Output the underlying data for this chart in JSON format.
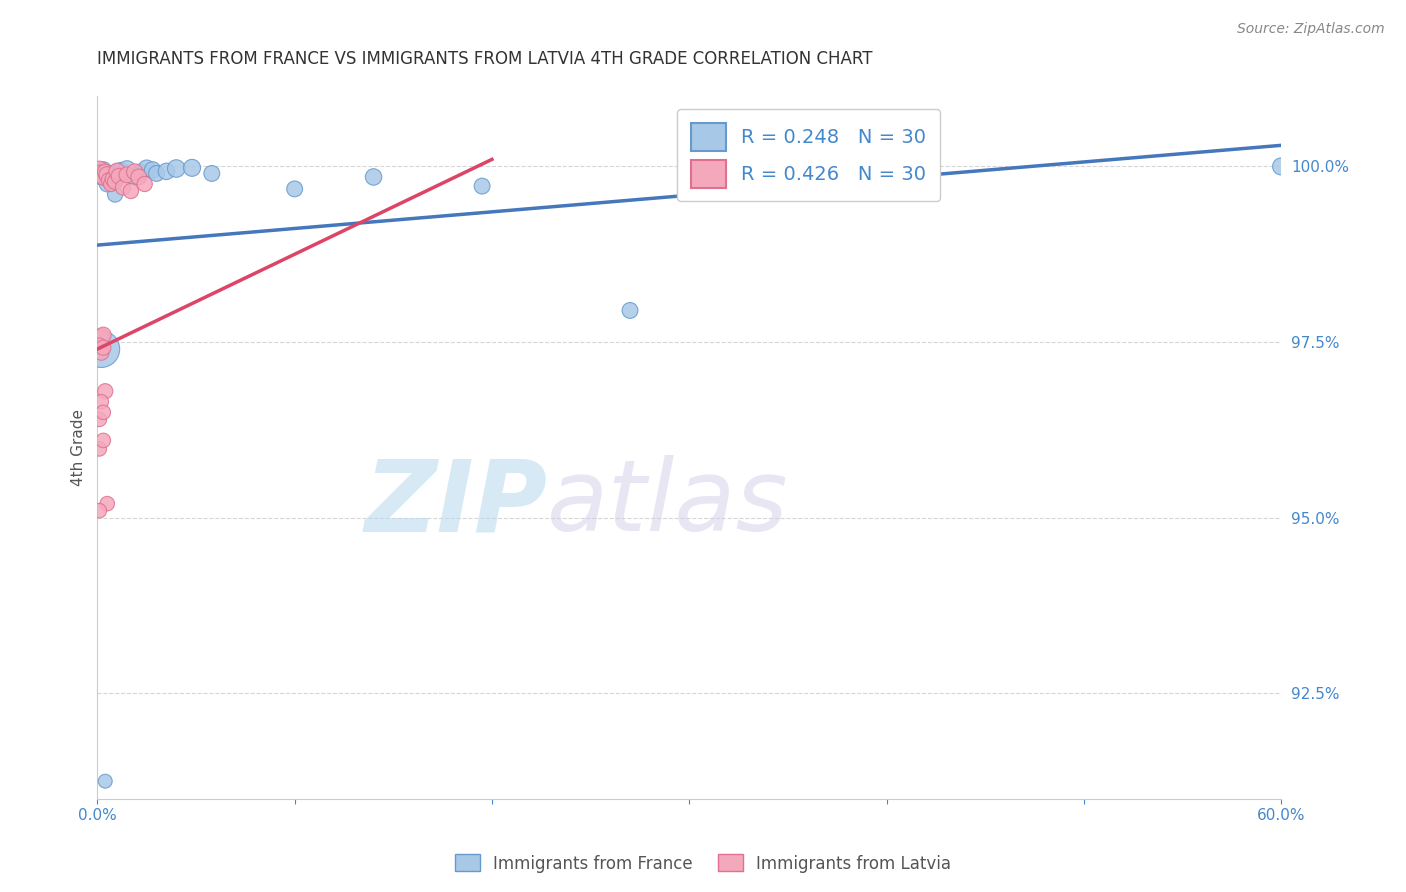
{
  "title": "IMMIGRANTS FROM FRANCE VS IMMIGRANTS FROM LATVIA 4TH GRADE CORRELATION CHART",
  "source": "Source: ZipAtlas.com",
  "xlabel_france": "Immigrants from France",
  "xlabel_latvia": "Immigrants from Latvia",
  "ylabel": "4th Grade",
  "xlim": [
    0.0,
    0.6
  ],
  "ylim": [
    0.91,
    1.01
  ],
  "xticks": [
    0.0,
    0.1,
    0.2,
    0.3,
    0.4,
    0.5,
    0.6
  ],
  "xtick_labels": [
    "0.0%",
    "",
    "",
    "",
    "",
    "",
    "60.0%"
  ],
  "yticks": [
    0.925,
    0.95,
    0.975,
    1.0
  ],
  "ytick_labels": [
    "92.5%",
    "95.0%",
    "97.5%",
    "100.0%"
  ],
  "france_color": "#a8c8e8",
  "latvia_color": "#f4a8bc",
  "france_edge": "#6699cc",
  "latvia_edge": "#e07090",
  "france_R": 0.248,
  "latvia_R": 0.426,
  "N": 30,
  "france_scatter": [
    [
      0.001,
      0.999
    ],
    [
      0.002,
      0.9985
    ],
    [
      0.003,
      0.9995
    ],
    [
      0.004,
      0.9988
    ],
    [
      0.005,
      0.9975
    ],
    [
      0.006,
      0.9982
    ],
    [
      0.007,
      0.999
    ],
    [
      0.008,
      0.9978
    ],
    [
      0.01,
      0.9992
    ],
    [
      0.012,
      0.9994
    ],
    [
      0.015,
      0.9996
    ],
    [
      0.018,
      0.9985
    ],
    [
      0.022,
      0.9992
    ],
    [
      0.025,
      0.9997
    ],
    [
      0.028,
      0.9995
    ],
    [
      0.03,
      0.999
    ],
    [
      0.035,
      0.9993
    ],
    [
      0.04,
      0.9997
    ],
    [
      0.048,
      0.9998
    ],
    [
      0.058,
      0.999
    ],
    [
      0.002,
      0.974
    ],
    [
      0.1,
      0.9968
    ],
    [
      0.14,
      0.9985
    ],
    [
      0.195,
      0.9972
    ],
    [
      0.27,
      0.9795
    ],
    [
      0.004,
      0.9125
    ],
    [
      0.6,
      1.0
    ],
    [
      0.38,
      0.9998
    ],
    [
      0.41,
      0.9998
    ],
    [
      0.009,
      0.996
    ]
  ],
  "latvia_scatter": [
    [
      0.001,
      0.9995
    ],
    [
      0.002,
      0.999
    ],
    [
      0.003,
      0.9985
    ],
    [
      0.004,
      0.9992
    ],
    [
      0.005,
      0.9988
    ],
    [
      0.006,
      0.998
    ],
    [
      0.007,
      0.9975
    ],
    [
      0.008,
      0.9982
    ],
    [
      0.009,
      0.9978
    ],
    [
      0.01,
      0.9993
    ],
    [
      0.011,
      0.9986
    ],
    [
      0.013,
      0.997
    ],
    [
      0.015,
      0.9988
    ],
    [
      0.017,
      0.9965
    ],
    [
      0.019,
      0.9992
    ],
    [
      0.021,
      0.9985
    ],
    [
      0.024,
      0.9975
    ],
    [
      0.002,
      0.9758
    ],
    [
      0.003,
      0.976
    ],
    [
      0.001,
      0.9745
    ],
    [
      0.002,
      0.9735
    ],
    [
      0.003,
      0.9742
    ],
    [
      0.004,
      0.968
    ],
    [
      0.002,
      0.9665
    ],
    [
      0.001,
      0.964
    ],
    [
      0.003,
      0.965
    ],
    [
      0.001,
      0.9598
    ],
    [
      0.003,
      0.961
    ],
    [
      0.005,
      0.952
    ],
    [
      0.001,
      0.951
    ]
  ],
  "france_trend_x": [
    0.0,
    0.6
  ],
  "france_trend_y": [
    0.9888,
    1.003
  ],
  "latvia_trend_x": [
    0.0,
    0.2
  ],
  "latvia_trend_y": [
    0.974,
    1.001
  ],
  "watermark_zip": "ZIP",
  "watermark_atlas": "atlas",
  "background_color": "#ffffff",
  "grid_color": "#cccccc",
  "title_color": "#333333",
  "axis_label_color": "#555555",
  "tick_color": "#4488cc",
  "legend_R_color": "#4488cc"
}
